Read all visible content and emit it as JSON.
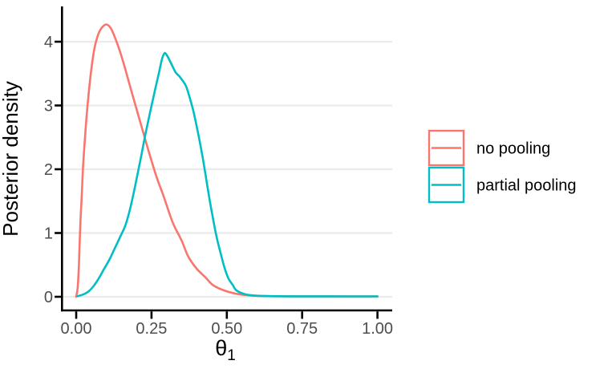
{
  "figure": {
    "background": "#ffffff"
  },
  "chart_data": {
    "type": "line",
    "kind": "density",
    "title": "",
    "xlabel": "θ",
    "xlabel_subscript": "1",
    "ylabel": "Posterior density",
    "xlim": [
      0,
      1
    ],
    "ylim": [
      0,
      4.5
    ],
    "grid": "horizontal-major-only",
    "colors": {
      "gridline": "#EBEBEB",
      "axis_line": "#000000",
      "tick_label": "#4D4D4D",
      "axis_title": "#000000",
      "legend_text": "#000000",
      "panel_background": "#FFFFFF"
    },
    "x_ticks": [
      {
        "value": 0.0,
        "label": "0.00"
      },
      {
        "value": 0.25,
        "label": "0.25"
      },
      {
        "value": 0.5,
        "label": "0.50"
      },
      {
        "value": 0.75,
        "label": "0.75"
      },
      {
        "value": 1.0,
        "label": "1.00"
      }
    ],
    "y_ticks": [
      {
        "value": 0,
        "label": "0"
      },
      {
        "value": 1,
        "label": "1"
      },
      {
        "value": 2,
        "label": "2"
      },
      {
        "value": 3,
        "label": "3"
      },
      {
        "value": 4,
        "label": "4"
      }
    ],
    "legend": {
      "position": "right",
      "entries": [
        {
          "label": "no pooling",
          "color": "#F8766D"
        },
        {
          "label": "partial pooling",
          "color": "#00BFC4"
        }
      ]
    },
    "series": [
      {
        "name": "no pooling",
        "color": "#F8766D",
        "peak": {
          "x": 0.1,
          "y": 4.27
        },
        "points": [
          [
            0.0,
            0.0
          ],
          [
            0.005,
            0.15
          ],
          [
            0.009,
            0.5
          ],
          [
            0.013,
            1.05
          ],
          [
            0.018,
            1.55
          ],
          [
            0.023,
            2.05
          ],
          [
            0.03,
            2.55
          ],
          [
            0.038,
            3.02
          ],
          [
            0.048,
            3.48
          ],
          [
            0.06,
            3.88
          ],
          [
            0.072,
            4.1
          ],
          [
            0.085,
            4.22
          ],
          [
            0.1,
            4.27
          ],
          [
            0.115,
            4.21
          ],
          [
            0.13,
            4.05
          ],
          [
            0.145,
            3.85
          ],
          [
            0.16,
            3.62
          ],
          [
            0.18,
            3.28
          ],
          [
            0.2,
            2.95
          ],
          [
            0.22,
            2.62
          ],
          [
            0.24,
            2.29
          ],
          [
            0.266,
            1.89
          ],
          [
            0.29,
            1.58
          ],
          [
            0.32,
            1.17
          ],
          [
            0.35,
            0.88
          ],
          [
            0.372,
            0.63
          ],
          [
            0.4,
            0.44
          ],
          [
            0.43,
            0.3
          ],
          [
            0.452,
            0.19
          ],
          [
            0.48,
            0.12
          ],
          [
            0.51,
            0.07
          ],
          [
            0.54,
            0.04
          ],
          [
            0.58,
            0.02
          ],
          [
            0.62,
            0.012
          ],
          [
            0.7,
            0.006
          ],
          [
            0.8,
            0.005
          ],
          [
            0.9,
            0.005
          ],
          [
            1.0,
            0.005
          ]
        ]
      },
      {
        "name": "partial pooling",
        "color": "#00BFC4",
        "peak": {
          "x": 0.29,
          "y": 3.82
        },
        "points": [
          [
            0.005,
            0.01
          ],
          [
            0.02,
            0.03
          ],
          [
            0.04,
            0.08
          ],
          [
            0.058,
            0.17
          ],
          [
            0.075,
            0.29
          ],
          [
            0.093,
            0.44
          ],
          [
            0.111,
            0.59
          ],
          [
            0.128,
            0.76
          ],
          [
            0.146,
            0.94
          ],
          [
            0.164,
            1.13
          ],
          [
            0.18,
            1.4
          ],
          [
            0.195,
            1.72
          ],
          [
            0.213,
            2.14
          ],
          [
            0.231,
            2.58
          ],
          [
            0.248,
            2.95
          ],
          [
            0.262,
            3.25
          ],
          [
            0.275,
            3.52
          ],
          [
            0.285,
            3.73
          ],
          [
            0.293,
            3.82
          ],
          [
            0.302,
            3.78
          ],
          [
            0.315,
            3.66
          ],
          [
            0.33,
            3.52
          ],
          [
            0.342,
            3.46
          ],
          [
            0.35,
            3.41
          ],
          [
            0.364,
            3.31
          ],
          [
            0.377,
            3.12
          ],
          [
            0.39,
            2.89
          ],
          [
            0.403,
            2.6
          ],
          [
            0.417,
            2.26
          ],
          [
            0.426,
            2.01
          ],
          [
            0.439,
            1.63
          ],
          [
            0.452,
            1.28
          ],
          [
            0.465,
            0.96
          ],
          [
            0.479,
            0.69
          ],
          [
            0.492,
            0.46
          ],
          [
            0.505,
            0.29
          ],
          [
            0.519,
            0.19
          ],
          [
            0.532,
            0.1
          ],
          [
            0.56,
            0.04
          ],
          [
            0.59,
            0.02
          ],
          [
            0.64,
            0.01
          ],
          [
            0.75,
            0.007
          ],
          [
            0.9,
            0.006
          ],
          [
            1.0,
            0.006
          ]
        ]
      }
    ]
  }
}
